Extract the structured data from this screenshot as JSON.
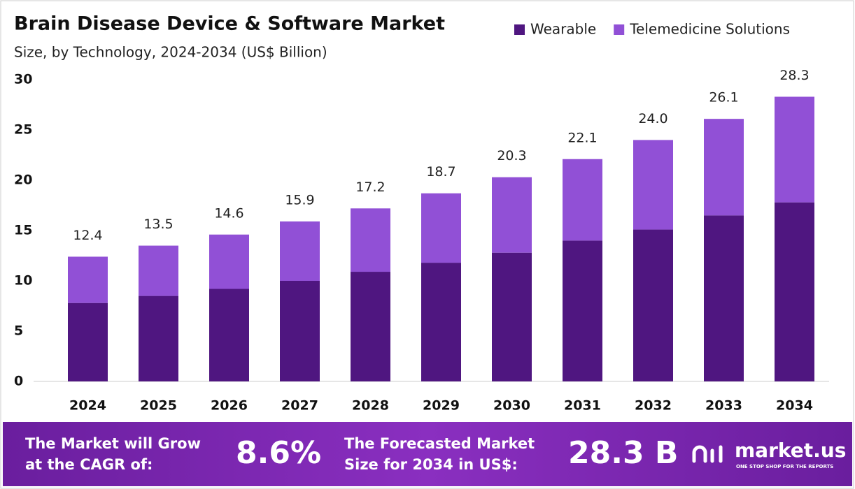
{
  "chart_data": {
    "type": "stacked_bar",
    "title": "Brain Disease Device & Software Market",
    "subtitle": "Size, by Technology, 2024-2034 (US$ Billion)",
    "categories": [
      "2024",
      "2025",
      "2026",
      "2027",
      "2028",
      "2029",
      "2030",
      "2031",
      "2032",
      "2033",
      "2034"
    ],
    "series": [
      {
        "name": "Wearable",
        "color": "#4f1680",
        "values": [
          7.8,
          8.5,
          9.2,
          10.0,
          10.9,
          11.8,
          12.8,
          14.0,
          15.1,
          16.5,
          17.8
        ]
      },
      {
        "name": "Telemedicine Solutions",
        "color": "#9150d6",
        "values": [
          4.6,
          5.0,
          5.4,
          5.9,
          6.3,
          6.9,
          7.5,
          8.1,
          8.9,
          9.6,
          10.5
        ]
      }
    ],
    "totals": [
      12.4,
      13.5,
      14.6,
      15.9,
      17.2,
      18.7,
      20.3,
      22.1,
      {
        "value": 24.0,
        "label": "24.0"
      },
      26.1,
      28.3
    ],
    "ylim": [
      0,
      30
    ],
    "yticks": [
      0,
      5,
      10,
      15,
      20,
      25,
      30
    ],
    "grid": false,
    "legend": "top-right"
  },
  "footer": {
    "cagr_label": [
      "The Market will Grow",
      "at the CAGR of:"
    ],
    "cagr_value": "8.6%",
    "forecast_label": [
      "The Forecasted Market",
      "Size for 2034 in US$:"
    ],
    "forecast_value": "28.3 B",
    "brand": "market.us",
    "tagline": "ONE STOP SHOP FOR THE REPORTS"
  }
}
